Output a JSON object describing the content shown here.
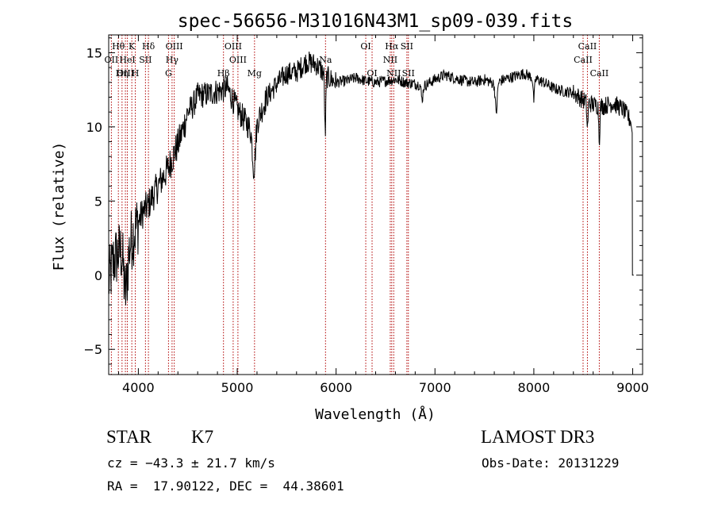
{
  "chart_data": {
    "type": "line",
    "title": "spec-56656-M31016N43M1_sp09-039.fits",
    "xlabel": "Wavelength (Å)",
    "ylabel": "Flux (relative)",
    "xlim": [
      3700,
      9100
    ],
    "ylim": [
      -6.7,
      16.2
    ],
    "x_ticks": [
      4000,
      5000,
      6000,
      7000,
      8000,
      9000
    ],
    "x_tick_labels": [
      "4000",
      "5000",
      "6000",
      "7000",
      "8000",
      "9000"
    ],
    "y_ticks": [
      -5,
      0,
      5,
      10,
      15
    ],
    "y_tick_labels": [
      "−5",
      "0",
      "5",
      "10",
      "15"
    ],
    "grid": false,
    "continuum_anchors": [
      [
        3700,
        -0.5
      ],
      [
        3750,
        1.0
      ],
      [
        3800,
        1.5
      ],
      [
        3850,
        1.8
      ],
      [
        3900,
        1.8
      ],
      [
        3950,
        2.8
      ],
      [
        4000,
        3.6
      ],
      [
        4050,
        4.3
      ],
      [
        4100,
        4.7
      ],
      [
        4150,
        5.4
      ],
      [
        4200,
        6.0
      ],
      [
        4250,
        6.6
      ],
      [
        4300,
        7.2
      ],
      [
        4350,
        8.0
      ],
      [
        4400,
        8.8
      ],
      [
        4450,
        9.8
      ],
      [
        4500,
        11.0
      ],
      [
        4550,
        11.4
      ],
      [
        4600,
        12.1
      ],
      [
        4700,
        12.2
      ],
      [
        4800,
        12.4
      ],
      [
        4900,
        12.6
      ],
      [
        5000,
        11.2
      ],
      [
        5100,
        10.2
      ],
      [
        5160,
        9.5
      ],
      [
        5200,
        10.3
      ],
      [
        5300,
        12.0
      ],
      [
        5400,
        12.9
      ],
      [
        5500,
        13.6
      ],
      [
        5600,
        13.7
      ],
      [
        5700,
        14.4
      ],
      [
        5800,
        14.2
      ],
      [
        5900,
        13.4
      ],
      [
        6000,
        13.0
      ],
      [
        6100,
        13.1
      ],
      [
        6200,
        13.3
      ],
      [
        6300,
        13.1
      ],
      [
        6400,
        13.0
      ],
      [
        6500,
        13.1
      ],
      [
        6600,
        13.2
      ],
      [
        6700,
        13.0
      ],
      [
        6800,
        12.9
      ],
      [
        6900,
        12.8
      ],
      [
        7000,
        13.2
      ],
      [
        7100,
        13.5
      ],
      [
        7200,
        13.3
      ],
      [
        7300,
        13.1
      ],
      [
        7400,
        13.0
      ],
      [
        7500,
        13.2
      ],
      [
        7600,
        12.9
      ],
      [
        7700,
        13.2
      ],
      [
        7800,
        13.4
      ],
      [
        7900,
        13.6
      ],
      [
        8000,
        13.3
      ],
      [
        8100,
        13.0
      ],
      [
        8200,
        12.6
      ],
      [
        8300,
        12.4
      ],
      [
        8400,
        12.3
      ],
      [
        8500,
        11.8
      ],
      [
        8600,
        11.5
      ],
      [
        8700,
        11.4
      ],
      [
        8800,
        11.6
      ],
      [
        8900,
        11.2
      ],
      [
        8980,
        10.4
      ]
    ],
    "absorption_features": [
      {
        "x": 3870,
        "depth": 3.0,
        "width": 25
      },
      {
        "x": 5890,
        "depth": 4.0,
        "width": 8
      },
      {
        "x": 5170,
        "depth": 2.5,
        "width": 20
      },
      {
        "x": 6870,
        "depth": 1.0,
        "width": 12
      },
      {
        "x": 7620,
        "depth": 2.0,
        "width": 14
      },
      {
        "x": 8000,
        "depth": 1.5,
        "width": 10
      },
      {
        "x": 8542,
        "depth": 1.8,
        "width": 8
      },
      {
        "x": 8662,
        "depth": 2.2,
        "width": 8
      }
    ],
    "spectral_lines": [
      {
        "label": "Hθ",
        "x": 3798,
        "row": 0
      },
      {
        "label": "OII",
        "x": 3727,
        "row": 1
      },
      {
        "label": "OIII",
        "x": 3869,
        "row": 2
      },
      {
        "label": "K",
        "x": 3934,
        "row": 0
      },
      {
        "label": "HeI",
        "x": 3889,
        "row": 1
      },
      {
        "label": "Hη",
        "x": 3835,
        "row": 2
      },
      {
        "label": "H",
        "x": 3969,
        "row": 2
      },
      {
        "label": "Hδ",
        "x": 4102,
        "row": 0
      },
      {
        "label": "SII",
        "x": 4072,
        "row": 1
      },
      {
        "label": "OIII",
        "x": 4363,
        "row": 0
      },
      {
        "label": "Hγ",
        "x": 4341,
        "row": 1
      },
      {
        "label": "G",
        "x": 4305,
        "row": 2
      },
      {
        "label": "Hβ",
        "x": 4861,
        "row": 2
      },
      {
        "label": "OIII",
        "x": 4959,
        "row": 0
      },
      {
        "label": "OIII",
        "x": 5007,
        "row": 1
      },
      {
        "label": "Mg",
        "x": 5175,
        "row": 2
      },
      {
        "label": "Na",
        "x": 5893,
        "row": 1
      },
      {
        "label": "OI",
        "x": 6300,
        "row": 0
      },
      {
        "label": "OI",
        "x": 6364,
        "row": 2
      },
      {
        "label": "Hα",
        "x": 6563,
        "row": 0
      },
      {
        "label": "NII",
        "x": 6548,
        "row": 1
      },
      {
        "label": "NII",
        "x": 6583,
        "row": 2
      },
      {
        "label": "SII",
        "x": 6716,
        "row": 0
      },
      {
        "label": "SII",
        "x": 6731,
        "row": 2
      },
      {
        "label": "CaII",
        "x": 8498,
        "row": 1
      },
      {
        "label": "CaII",
        "x": 8542,
        "row": 0
      },
      {
        "label": "CaII",
        "x": 8662,
        "row": 2
      }
    ]
  },
  "info": {
    "class": "STAR",
    "subclass": "K7",
    "survey": "LAMOST DR3",
    "cz": "cz = −43.3 ± 21.7 km/s",
    "obs_date": "Obs-Date: 20131229",
    "coords": "RA =  17.90122, DEC =  44.38601"
  },
  "colors": {
    "line_marker": "#b00000",
    "spectrum": "#000000"
  }
}
